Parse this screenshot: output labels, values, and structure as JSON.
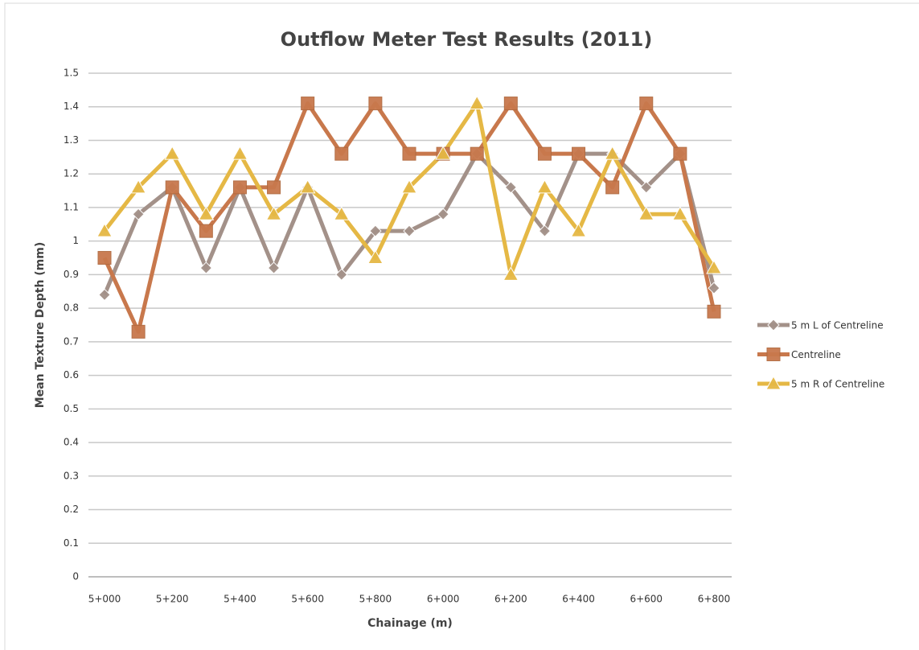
{
  "chart_data": {
    "type": "line",
    "title": "Outflow Meter Test Results (2011)",
    "x_label": "Chainage (m)",
    "y_label": "Mean Texture Depth (mm)",
    "categories": [
      "5+000",
      null,
      "5+200",
      null,
      "5+400",
      null,
      "5+600",
      null,
      "5+800",
      null,
      "6+000",
      null,
      "6+200",
      null,
      "6+400",
      null,
      "6+600",
      null,
      "6+800"
    ],
    "series": [
      {
        "name": "5 m L of Centreline",
        "color": "#a39189",
        "marker": "diamond",
        "values": [
          0.84,
          1.08,
          1.16,
          0.92,
          1.16,
          0.92,
          1.16,
          0.9,
          1.03,
          1.03,
          1.08,
          1.26,
          1.16,
          1.03,
          1.26,
          1.26,
          1.16,
          1.26,
          0.86
        ]
      },
      {
        "name": "Centreline",
        "color": "#c8784c",
        "marker": "square",
        "values": [
          0.95,
          0.73,
          1.16,
          1.03,
          1.16,
          1.16,
          1.41,
          1.26,
          1.41,
          1.26,
          1.26,
          1.26,
          1.41,
          1.26,
          1.26,
          1.16,
          1.41,
          1.26,
          0.79
        ]
      },
      {
        "name": "5 m R of Centreline",
        "color": "#e5b845",
        "marker": "triangle",
        "values": [
          1.03,
          1.16,
          1.26,
          1.08,
          1.26,
          1.08,
          1.16,
          1.08,
          0.95,
          1.16,
          1.26,
          1.41,
          0.9,
          1.16,
          1.03,
          1.26,
          1.08,
          1.08,
          0.92
        ]
      }
    ],
    "ylim": [
      0,
      1.5
    ],
    "yticks": [
      0,
      0.1,
      0.2,
      0.3,
      0.4,
      0.5,
      0.6,
      0.7,
      0.8,
      0.9,
      1,
      1.1,
      1.2,
      1.3,
      1.4,
      1.5
    ],
    "grid": true,
    "legend": "right"
  }
}
